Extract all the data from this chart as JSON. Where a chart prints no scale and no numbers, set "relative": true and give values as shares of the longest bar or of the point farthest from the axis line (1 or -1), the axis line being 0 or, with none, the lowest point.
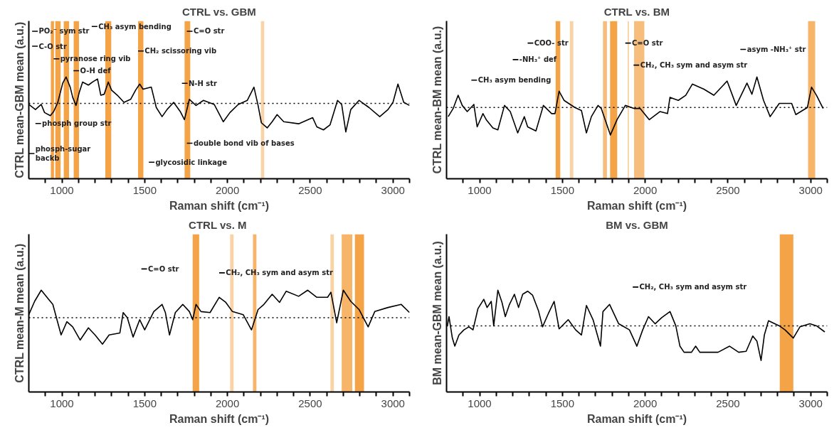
{
  "chart_data": [
    {
      "type": "line",
      "title": "CTRL vs. GBM",
      "xlabel": "Raman shift (cm⁻¹)",
      "ylabel": "CTRL mean-GBM mean (a.u.)",
      "relative": true,
      "tick_labels": "x",
      "xlim": [
        800,
        3100
      ],
      "xticks": [
        {
          "value": 900,
          "label": null
        },
        1000,
        {
          "value": 1100,
          "label": null
        },
        {
          "value": 1200,
          "label": null
        },
        {
          "value": 1300,
          "label": null
        },
        {
          "value": 1400,
          "label": null
        },
        1500,
        {
          "value": 1600,
          "label": null
        },
        {
          "value": 1700,
          "label": null
        },
        {
          "value": 1800,
          "label": null
        },
        {
          "value": 1900,
          "label": null
        },
        2000,
        {
          "value": 2100,
          "label": null
        },
        {
          "value": 2200,
          "label": null
        },
        {
          "value": 2300,
          "label": null
        },
        {
          "value": 2400,
          "label": null
        },
        2500,
        {
          "value": 2600,
          "label": null
        },
        {
          "value": 2700,
          "label": null
        },
        {
          "value": 2800,
          "label": null
        },
        {
          "value": 2900,
          "label": null
        },
        3000,
        {
          "value": 3100,
          "label": null
        }
      ],
      "series": [
        {
          "color": "#000000",
          "x": [
            800,
            840,
            875,
            895,
            930,
            950,
            975,
            1005,
            1025,
            1050,
            1065,
            1085,
            1105,
            1125,
            1160,
            1185,
            1215,
            1235,
            1255,
            1280,
            1300,
            1335,
            1375,
            1415,
            1445,
            1470,
            1490,
            1540,
            1570,
            1605,
            1635,
            1675,
            1715,
            1740,
            1770,
            1810,
            1855,
            1920,
            1975,
            2015,
            2065,
            2120,
            2160,
            2185,
            2205,
            2240,
            2270,
            2300,
            2340,
            2430,
            2515,
            2540,
            2580,
            2620,
            2665,
            2690,
            2715,
            2745,
            2795,
            2855,
            2920,
            2970,
            3000,
            3030,
            3065,
            3100
          ],
          "values": [
            0.73,
            0.68,
            0.73,
            0.65,
            0.62,
            0.66,
            0.75,
            0.94,
            1.0,
            0.9,
            0.8,
            0.72,
            0.85,
            0.95,
            0.92,
            0.95,
            0.98,
            0.82,
            0.83,
            0.95,
            0.87,
            0.82,
            0.75,
            0.78,
            0.87,
            0.93,
            0.88,
            0.9,
            0.7,
            0.61,
            0.68,
            0.75,
            0.66,
            0.58,
            0.78,
            0.72,
            0.77,
            0.73,
            0.56,
            0.65,
            0.73,
            0.77,
            0.9,
            0.72,
            0.55,
            0.5,
            0.56,
            0.63,
            0.56,
            0.54,
            0.6,
            0.51,
            0.48,
            0.53,
            0.77,
            0.73,
            0.46,
            0.68,
            0.77,
            0.7,
            0.61,
            0.68,
            0.75,
            0.93,
            0.75,
            0.72
          ]
        }
      ],
      "ref_lines": [
        {
          "axis": "y",
          "value": 0.74,
          "color": "#000000",
          "line_style": "dotted"
        }
      ],
      "bands": [
        {
          "axis": "x",
          "from": 933,
          "to": 952,
          "color": "#f5a347"
        },
        {
          "axis": "x",
          "from": 960,
          "to": 992,
          "color": "#f5a347"
        },
        {
          "axis": "x",
          "from": 1011,
          "to": 1043,
          "color": "#f5a347"
        },
        {
          "axis": "x",
          "from": 1071,
          "to": 1103,
          "color": "#f5a347"
        },
        {
          "axis": "x",
          "from": 1262,
          "to": 1298,
          "color": "#f5a347"
        },
        {
          "axis": "x",
          "from": 1460,
          "to": 1492,
          "color": "#f5a347"
        },
        {
          "axis": "x",
          "from": 1741,
          "to": 1775,
          "color": "#f5a347"
        },
        {
          "axis": "x",
          "from": 2202,
          "to": 2222,
          "color": "#f9d3a6"
        }
      ],
      "annotations": [
        "PO₂⁻ sym str",
        "CH₃ asym bending",
        "C=O str",
        "C-O str",
        "CH₂ scissoring vib",
        "pyranose ring vib",
        "O-H def",
        "N-H str",
        "phosph group str",
        "double bond vib of bases",
        "phosph-sugar\nbackb",
        "glycosidic linkage"
      ]
    },
    {
      "type": "line",
      "title": "CTRL vs. BM",
      "xlabel": "Raman shift (cm⁻¹)",
      "ylabel": "CTRL mean-BM mean (a.u.)",
      "relative": true,
      "tick_labels": "x",
      "xlim": [
        800,
        3100
      ],
      "xticks": [
        {
          "value": 900,
          "label": null
        },
        1000,
        {
          "value": 1100,
          "label": null
        },
        {
          "value": 1200,
          "label": null
        },
        {
          "value": 1300,
          "label": null
        },
        {
          "value": 1400,
          "label": null
        },
        1500,
        {
          "value": 1600,
          "label": null
        },
        {
          "value": 1700,
          "label": null
        },
        {
          "value": 1800,
          "label": null
        },
        {
          "value": 1900,
          "label": null
        },
        2000,
        {
          "value": 2100,
          "label": null
        },
        {
          "value": 2200,
          "label": null
        },
        {
          "value": 2300,
          "label": null
        },
        {
          "value": 2400,
          "label": null
        },
        2500,
        {
          "value": 2600,
          "label": null
        },
        {
          "value": 2700,
          "label": null
        },
        {
          "value": 2800,
          "label": null
        },
        {
          "value": 2900,
          "label": null
        },
        3000,
        {
          "value": 3100,
          "label": null
        }
      ],
      "series": [
        {
          "color": "#000000",
          "x": [
            810,
            840,
            870,
            895,
            925,
            965,
            985,
            1020,
            1040,
            1080,
            1110,
            1150,
            1185,
            1230,
            1270,
            1290,
            1340,
            1385,
            1435,
            1455,
            1480,
            1510,
            1575,
            1615,
            1645,
            1675,
            1715,
            1735,
            1790,
            1830,
            1880,
            1935,
            1970,
            2025,
            2090,
            2135,
            2150,
            2200,
            2245,
            2285,
            2355,
            2415,
            2495,
            2550,
            2615,
            2645,
            2675,
            2715,
            2755,
            2810,
            2885,
            2910,
            2980,
            3005,
            3035,
            3075
          ],
          "values": [
            0.61,
            0.69,
            0.82,
            0.72,
            0.66,
            0.73,
            0.51,
            0.64,
            0.58,
            0.5,
            0.48,
            0.72,
            0.66,
            0.45,
            0.61,
            0.51,
            0.47,
            0.72,
            0.64,
            0.64,
            0.86,
            0.77,
            0.7,
            0.67,
            0.45,
            0.61,
            0.72,
            0.69,
            0.43,
            0.58,
            0.72,
            0.69,
            0.69,
            0.58,
            0.66,
            0.64,
            0.8,
            0.77,
            0.82,
            0.93,
            0.88,
            0.82,
            0.96,
            0.72,
            0.94,
            0.83,
            1.0,
            0.77,
            0.61,
            0.74,
            0.74,
            0.63,
            0.7,
            0.9,
            0.82,
            0.69
          ]
        }
      ],
      "ref_lines": [
        {
          "axis": "y",
          "value": 0.7,
          "color": "#000000",
          "line_style": "dotted"
        }
      ],
      "bands": [
        {
          "axis": "x",
          "from": 1459,
          "to": 1487,
          "color": "#f5a347"
        },
        {
          "axis": "x",
          "from": 1545,
          "to": 1566,
          "color": "#f9d3a6"
        },
        {
          "axis": "x",
          "from": 1745,
          "to": 1769,
          "color": "#f7bd7c"
        },
        {
          "axis": "x",
          "from": 1788,
          "to": 1831,
          "color": "#f5a347"
        },
        {
          "axis": "x",
          "from": 1894,
          "to": 1902,
          "color": "#f9d3a6"
        },
        {
          "axis": "x",
          "from": 1933,
          "to": 1995,
          "color": "#f7bd7c"
        },
        {
          "axis": "x",
          "from": 2984,
          "to": 3027,
          "color": "#f7b56a"
        }
      ],
      "annotations": [
        "COO- str",
        "-NH₃⁺ def",
        "CH₃ asym bending",
        "C=O str",
        "asym -NH₃⁺ str",
        "CH₂, CH₃ sym and asym str"
      ]
    },
    {
      "type": "line",
      "title": "CTRL vs.  M",
      "xlabel": "Raman shift (cm⁻¹)",
      "ylabel": "CTRL mean-M mean (a.u.)",
      "relative": true,
      "tick_labels": "x",
      "xlim": [
        800,
        3100
      ],
      "xticks": [
        {
          "value": 900,
          "label": null
        },
        1000,
        {
          "value": 1100,
          "label": null
        },
        {
          "value": 1200,
          "label": null
        },
        {
          "value": 1300,
          "label": null
        },
        {
          "value": 1400,
          "label": null
        },
        1500,
        {
          "value": 1600,
          "label": null
        },
        {
          "value": 1700,
          "label": null
        },
        {
          "value": 1800,
          "label": null
        },
        {
          "value": 1900,
          "label": null
        },
        2000,
        {
          "value": 2100,
          "label": null
        },
        {
          "value": 2200,
          "label": null
        },
        {
          "value": 2300,
          "label": null
        },
        {
          "value": 2400,
          "label": null
        },
        2500,
        {
          "value": 2600,
          "label": null
        },
        {
          "value": 2700,
          "label": null
        },
        {
          "value": 2800,
          "label": null
        },
        {
          "value": 2900,
          "label": null
        },
        3000,
        {
          "value": 3100,
          "label": null
        }
      ],
      "series": [
        {
          "color": "#000000",
          "x": [
            800,
            835,
            875,
            920,
            945,
            970,
            995,
            1030,
            1065,
            1110,
            1160,
            1200,
            1245,
            1285,
            1350,
            1370,
            1395,
            1430,
            1470,
            1500,
            1555,
            1605,
            1625,
            1650,
            1685,
            1730,
            1770,
            1790,
            1810,
            1840,
            1895,
            1950,
            1990,
            2030,
            2095,
            2145,
            2185,
            2220,
            2270,
            2315,
            2355,
            2430,
            2485,
            2540,
            2605,
            2625,
            2660,
            2700,
            2745,
            2795,
            2850,
            2890,
            2970,
            3050,
            3100
          ],
          "values": [
            0.76,
            0.89,
            1.0,
            0.91,
            0.86,
            0.71,
            0.56,
            0.69,
            0.64,
            0.51,
            0.63,
            0.56,
            0.47,
            0.56,
            0.58,
            0.78,
            0.73,
            0.54,
            0.71,
            0.61,
            0.79,
            0.86,
            0.78,
            0.56,
            0.78,
            0.86,
            0.79,
            0.71,
            0.86,
            0.79,
            0.78,
            0.93,
            0.88,
            0.79,
            0.76,
            0.61,
            0.81,
            0.86,
            0.96,
            0.88,
            0.99,
            0.94,
            1.0,
            0.93,
            0.93,
            0.98,
            0.68,
            1.0,
            0.89,
            0.81,
            0.64,
            0.79,
            0.83,
            0.86,
            0.78
          ]
        }
      ],
      "ref_lines": [
        {
          "axis": "y",
          "value": 0.73,
          "color": "#000000",
          "line_style": "dotted"
        }
      ],
      "bands": [
        {
          "axis": "x",
          "from": 1790,
          "to": 1829,
          "color": "#f5a347"
        },
        {
          "axis": "x",
          "from": 2016,
          "to": 2037,
          "color": "#f9d3a6"
        },
        {
          "axis": "x",
          "from": 2154,
          "to": 2175,
          "color": "#f7b56a"
        },
        {
          "axis": "x",
          "from": 2622,
          "to": 2643,
          "color": "#f9d3a6"
        },
        {
          "axis": "x",
          "from": 2690,
          "to": 2754,
          "color": "#f7b56a"
        },
        {
          "axis": "x",
          "from": 2770,
          "to": 2825,
          "color": "#f5a347"
        }
      ],
      "annotations": [
        "C=O str",
        "CH₂, CH₃ sym and asym str"
      ]
    },
    {
      "type": "line",
      "title": "BM vs. GBM",
      "xlabel": "Raman shift (cm⁻¹)",
      "ylabel": "BM mean-GBM mean (a.u.)",
      "relative": true,
      "tick_labels": "x",
      "xlim": [
        800,
        3100
      ],
      "xticks": [
        {
          "value": 900,
          "label": null
        },
        1000,
        {
          "value": 1100,
          "label": null
        },
        {
          "value": 1200,
          "label": null
        },
        {
          "value": 1300,
          "label": null
        },
        {
          "value": 1400,
          "label": null
        },
        1500,
        {
          "value": 1600,
          "label": null
        },
        {
          "value": 1700,
          "label": null
        },
        {
          "value": 1800,
          "label": null
        },
        {
          "value": 1900,
          "label": null
        },
        2000,
        {
          "value": 2100,
          "label": null
        },
        {
          "value": 2200,
          "label": null
        },
        {
          "value": 2300,
          "label": null
        },
        {
          "value": 2400,
          "label": null
        },
        2500,
        {
          "value": 2600,
          "label": null
        },
        {
          "value": 2700,
          "label": null
        },
        {
          "value": 2800,
          "label": null
        },
        {
          "value": 2900,
          "label": null
        },
        3000,
        {
          "value": 3100,
          "label": null
        }
      ],
      "series": [
        {
          "color": "#000000",
          "x": [
            805,
            815,
            835,
            850,
            875,
            905,
            935,
            960,
            990,
            1025,
            1045,
            1070,
            1085,
            1110,
            1135,
            1155,
            1180,
            1210,
            1235,
            1260,
            1290,
            1320,
            1355,
            1380,
            1415,
            1450,
            1480,
            1535,
            1580,
            1615,
            1645,
            1685,
            1730,
            1745,
            1785,
            1840,
            1905,
            1950,
            1985,
            2020,
            2060,
            2100,
            2150,
            2185,
            2210,
            2235,
            2280,
            2305,
            2330,
            2440,
            2510,
            2565,
            2610,
            2650,
            2675,
            2700,
            2720,
            2745,
            2810,
            2845,
            2895,
            2935,
            2995,
            3035,
            3085
          ],
          "values": [
            0.65,
            0.74,
            0.53,
            0.45,
            0.56,
            0.61,
            0.64,
            0.61,
            0.82,
            0.91,
            0.83,
            0.89,
            0.65,
            1.0,
            0.88,
            0.74,
            0.86,
            0.96,
            0.83,
            0.96,
            0.99,
            0.95,
            0.8,
            0.64,
            0.77,
            0.89,
            0.62,
            0.71,
            0.61,
            0.56,
            0.85,
            0.71,
            0.45,
            0.79,
            0.86,
            0.67,
            0.61,
            0.45,
            0.61,
            0.74,
            0.67,
            0.73,
            0.79,
            0.65,
            0.45,
            0.39,
            0.39,
            0.45,
            0.39,
            0.39,
            0.45,
            0.39,
            0.4,
            0.55,
            0.5,
            0.31,
            0.56,
            0.7,
            0.65,
            0.61,
            0.53,
            0.64,
            0.67,
            0.65,
            0.59
          ]
        }
      ],
      "ref_lines": [
        {
          "axis": "y",
          "value": 0.65,
          "color": "#000000",
          "line_style": "dotted"
        }
      ],
      "bands": [
        {
          "axis": "x",
          "from": 2813,
          "to": 2895,
          "color": "#f5a347"
        }
      ],
      "annotations": [
        "CH₂, CH₃ sym and asym str"
      ]
    }
  ]
}
